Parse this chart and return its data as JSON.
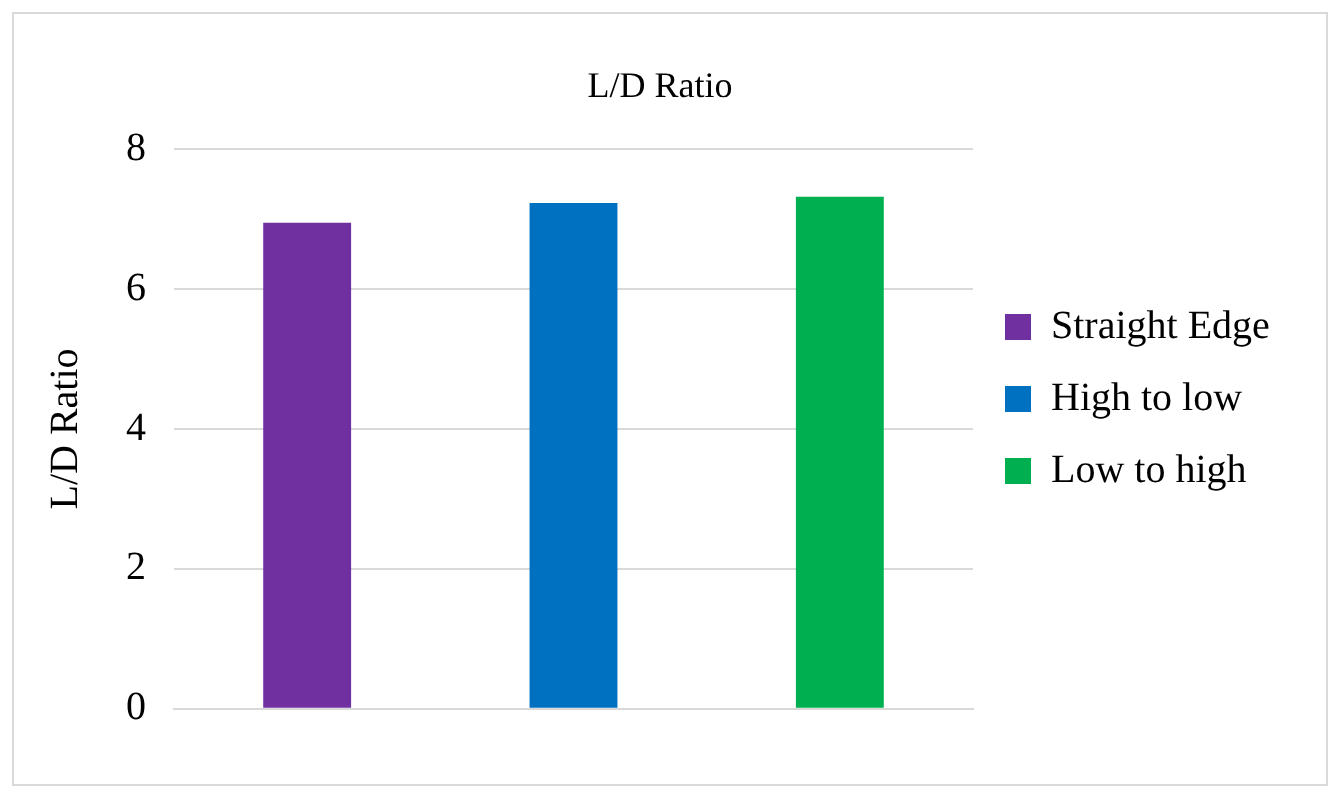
{
  "chart_data": {
    "type": "bar",
    "title": "L/D Ratio",
    "ylabel": "L/D Ratio",
    "categories": [
      null
    ],
    "series": [
      {
        "name": "Straight Edge",
        "color": "#7030a0",
        "values": [
          6.95
        ]
      },
      {
        "name": "High to low",
        "color": "#0070c0",
        "values": [
          7.23
        ]
      },
      {
        "name": "Low to high",
        "color": "#00b050",
        "values": [
          7.32
        ]
      }
    ],
    "ylim": [
      0,
      8
    ],
    "yticks": [
      0,
      2,
      4,
      6,
      8
    ],
    "grid": "y",
    "legend": "right"
  }
}
